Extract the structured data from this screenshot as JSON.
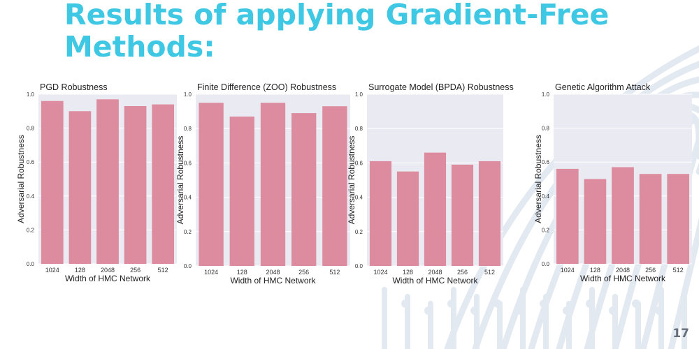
{
  "slide": {
    "title_line1": "Results of applying Gradient-Free",
    "title_line2": "Methods:",
    "page_number": "17"
  },
  "colors": {
    "title": "#3ec8e4",
    "bar": "#dc8c9e",
    "plot_bg": "#eaeaf2",
    "decor": "#e3e9f1"
  },
  "chart_data": [
    {
      "type": "bar",
      "title": "PGD Robustness",
      "xlabel": "Width of HMC Network",
      "ylabel": "Adversarial Robustness",
      "categories": [
        "1024",
        "128",
        "2048",
        "256",
        "512"
      ],
      "values": [
        0.96,
        0.9,
        0.97,
        0.93,
        0.94
      ],
      "ylim": [
        0,
        1.0
      ],
      "yticks": [
        "0.0",
        "0.2",
        "0.4",
        "0.6",
        "0.8",
        "1.0"
      ],
      "grid": true
    },
    {
      "type": "bar",
      "title": "Finite Difference (ZOO) Robustness",
      "xlabel": "Width of HMC Network",
      "ylabel": "Adversarial Robustness",
      "categories": [
        "1024",
        "128",
        "2048",
        "256",
        "512"
      ],
      "values": [
        0.95,
        0.87,
        0.95,
        0.89,
        0.93
      ],
      "ylim": [
        0,
        1.0
      ],
      "yticks": [
        "0.0",
        "0.2",
        "0.4",
        "0.6",
        "0.8",
        "1.0"
      ],
      "grid": true
    },
    {
      "type": "bar",
      "title": "Surrogate Model (BPDA) Robustness",
      "xlabel": "Width of HMC Network",
      "ylabel": "Adversarial Robustness",
      "categories": [
        "1024",
        "128",
        "2048",
        "256",
        "512"
      ],
      "values": [
        0.61,
        0.55,
        0.66,
        0.59,
        0.61
      ],
      "ylim": [
        0,
        1.0
      ],
      "yticks": [
        "0.0",
        "0.2",
        "0.4",
        "0.6",
        "0.8",
        "1.0"
      ],
      "grid": true
    },
    {
      "type": "bar",
      "title": "Genetic Algorithm Attack",
      "xlabel": "Width of HMC Network",
      "ylabel": "Adversarial Robustness",
      "categories": [
        "1024",
        "128",
        "2048",
        "256",
        "512"
      ],
      "values": [
        0.56,
        0.5,
        0.57,
        0.53,
        0.53
      ],
      "ylim": [
        0,
        1.0
      ],
      "yticks": [
        "0.0",
        "0.2",
        "0.4",
        "0.6",
        "0.8",
        "1.0"
      ],
      "grid": true
    }
  ]
}
